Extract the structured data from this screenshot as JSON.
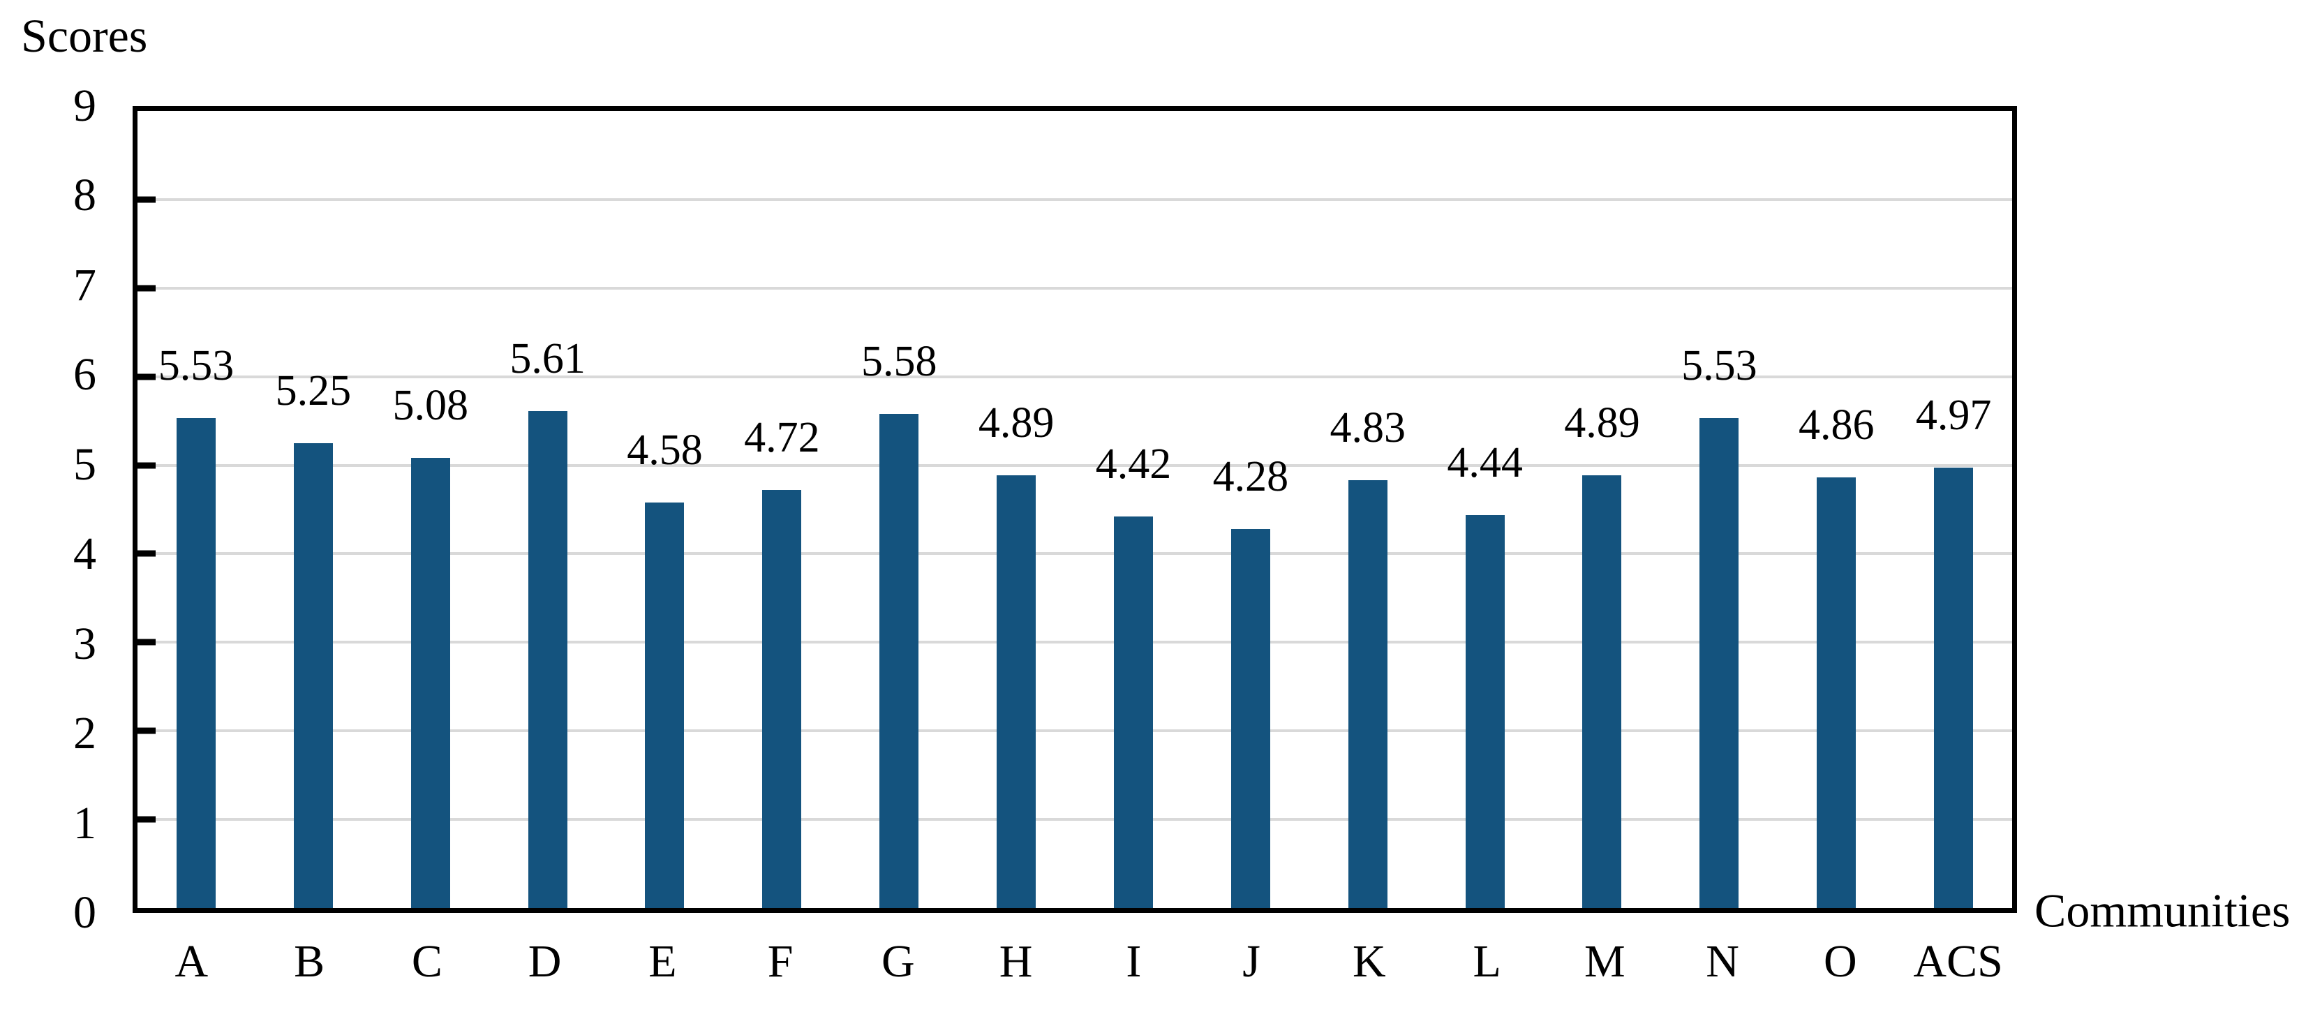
{
  "figure": {
    "background": "#FFFFFF"
  },
  "chart_data": {
    "type": "bar",
    "title": "",
    "ylabel": "Scores",
    "xlabel": "Communities",
    "categories": [
      "A",
      "B",
      "C",
      "D",
      "E",
      "F",
      "G",
      "H",
      "I",
      "J",
      "K",
      "L",
      "M",
      "N",
      "O",
      "ACS"
    ],
    "values": [
      5.53,
      5.25,
      5.08,
      5.61,
      4.58,
      4.72,
      5.58,
      4.89,
      4.42,
      4.28,
      4.83,
      4.44,
      4.89,
      5.53,
      4.86,
      4.97
    ],
    "value_labels": [
      "5.53",
      "5.25",
      "5.08",
      "5.61",
      "4.58",
      "4.72",
      "5.58",
      "4.89",
      "4.42",
      "4.28",
      "4.83",
      "4.44",
      "4.89",
      "5.53",
      "4.86",
      "4.97"
    ],
    "yticks": [
      0,
      1,
      2,
      3,
      4,
      5,
      6,
      7,
      8,
      9
    ],
    "ylim": [
      0,
      9
    ],
    "grid": true,
    "legend_position": "none",
    "bar_color": "#14537E",
    "gridline_color": "#D9D9D9",
    "axis_color": "#000000",
    "text_color": "#000000"
  }
}
